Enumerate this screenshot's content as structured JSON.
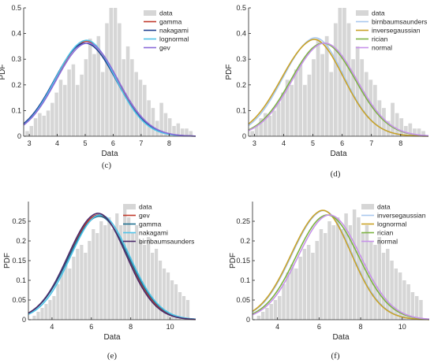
{
  "colors": {
    "bar_fill": "#d6d6d6",
    "axis": "#262626",
    "text": "#262626"
  },
  "panels": [
    {
      "id": "c",
      "caption": "(c)"
    },
    {
      "id": "d",
      "caption": "(d)"
    },
    {
      "id": "e",
      "caption": "(e)"
    },
    {
      "id": "f",
      "caption": "(f)"
    }
  ],
  "chart_data": [
    {
      "type": "bar",
      "panel": "(c)",
      "xlabel": "Data",
      "ylabel": "PDF",
      "xlim": [
        2.8,
        8.95
      ],
      "ylim": [
        0,
        0.5
      ],
      "xticks": [
        3,
        4,
        5,
        6,
        7,
        8
      ],
      "yticks": [
        0,
        0.1,
        0.2,
        0.3,
        0.4,
        0.5
      ],
      "ytick_labels": [
        "0",
        "0.1",
        "0.2",
        "0.3",
        "0.4",
        "0.5"
      ],
      "grid": false,
      "legend_position": "top-right",
      "hist_start": 2.85,
      "bin_width": 0.15,
      "values": [
        0.02,
        0.04,
        0.07,
        0.09,
        0.08,
        0.1,
        0.13,
        0.17,
        0.22,
        0.2,
        0.26,
        0.28,
        0.2,
        0.24,
        0.3,
        0.38,
        0.32,
        0.39,
        0.25,
        0.44,
        0.5,
        0.5,
        0.44,
        0.3,
        0.35,
        0.3,
        0.25,
        0.22,
        0.2,
        0.14,
        0.11,
        0.06,
        0.13,
        0.09,
        0.07,
        0.04,
        0.05,
        0.03,
        0.03,
        0.02
      ],
      "legend": [
        "data",
        "gamma",
        "nakagami",
        "lognormal",
        "gev"
      ],
      "series": [
        {
          "name": "gamma",
          "color": "#c0392b",
          "mu": 5.0,
          "sigma": 1.08,
          "skew": 0.15
        },
        {
          "name": "nakagami",
          "color": "#1f3f8f",
          "mu": 5.0,
          "sigma": 1.1,
          "skew": 0.0
        },
        {
          "name": "lognormal",
          "color": "#4fc3e8",
          "mu": 4.98,
          "sigma": 1.07,
          "skew": 0.2
        },
        {
          "name": "gev",
          "color": "#8a6ad8",
          "mu": 5.05,
          "sigma": 1.1,
          "skew": 0.1
        }
      ]
    },
    {
      "type": "bar",
      "panel": "(d)",
      "xlabel": "Data",
      "ylabel": "PDF",
      "xlim": [
        2.8,
        8.95
      ],
      "ylim": [
        0,
        0.5
      ],
      "xticks": [
        3,
        4,
        5,
        6,
        7,
        8
      ],
      "yticks": [
        0,
        0.1,
        0.2,
        0.3,
        0.4,
        0.5
      ],
      "ytick_labels": [
        "0",
        "0.1",
        "0.2",
        "0.3",
        "0.4",
        "0.5"
      ],
      "grid": false,
      "legend_position": "top-right",
      "hist_start": 2.85,
      "bin_width": 0.15,
      "values": [
        0.02,
        0.04,
        0.07,
        0.09,
        0.08,
        0.1,
        0.13,
        0.17,
        0.22,
        0.2,
        0.26,
        0.28,
        0.2,
        0.24,
        0.3,
        0.38,
        0.32,
        0.39,
        0.25,
        0.44,
        0.5,
        0.5,
        0.44,
        0.3,
        0.35,
        0.3,
        0.25,
        0.22,
        0.2,
        0.14,
        0.11,
        0.06,
        0.13,
        0.09,
        0.07,
        0.04,
        0.05,
        0.03,
        0.03,
        0.02
      ],
      "legend": [
        "data",
        "birnbaumsaunders",
        "inversegaussian",
        "rician",
        "normal"
      ],
      "series": [
        {
          "name": "birnbaumsaunders",
          "color": "#a9c8ee",
          "mu": 4.95,
          "sigma": 1.05,
          "skew": 0.45
        },
        {
          "name": "inversegaussian",
          "color": "#c9a227",
          "mu": 4.9,
          "sigma": 1.07,
          "skew": 0.5
        },
        {
          "name": "rician",
          "color": "#7cb342",
          "mu": 5.35,
          "sigma": 1.1,
          "skew": 0.0
        },
        {
          "name": "normal",
          "color": "#c792ea",
          "mu": 5.4,
          "sigma": 1.1,
          "skew": 0.0
        }
      ]
    },
    {
      "type": "bar",
      "panel": "(e)",
      "xlabel": "Data",
      "ylabel": "PDF",
      "xlim": [
        2.8,
        11.3
      ],
      "ylim": [
        0,
        0.3
      ],
      "xticks": [
        4,
        6,
        8,
        10
      ],
      "yticks": [
        0,
        0.05,
        0.1,
        0.15,
        0.2,
        0.25
      ],
      "ytick_labels": [
        "0",
        "0.05",
        "0.1",
        "0.15",
        "0.2",
        "0.25"
      ],
      "grid": false,
      "legend_position": "top-right",
      "hist_start": 3.0,
      "bin_width": 0.2,
      "values": [
        0.01,
        0.02,
        0.03,
        0.04,
        0.05,
        0.06,
        0.09,
        0.12,
        0.14,
        0.13,
        0.16,
        0.18,
        0.19,
        0.17,
        0.2,
        0.23,
        0.22,
        0.25,
        0.24,
        0.26,
        0.23,
        0.27,
        0.24,
        0.28,
        0.26,
        0.22,
        0.24,
        0.2,
        0.19,
        0.21,
        0.17,
        0.18,
        0.15,
        0.13,
        0.12,
        0.1,
        0.09,
        0.07,
        0.06,
        0.05
      ],
      "legend": [
        "data",
        "gev",
        "gamma",
        "nakagami",
        "birnbaumsaunders"
      ],
      "series": [
        {
          "name": "gev",
          "color": "#c0392b",
          "mu": 6.3,
          "sigma": 1.5,
          "skew": 0.15
        },
        {
          "name": "gamma",
          "color": "#1f6f8f",
          "mu": 6.35,
          "sigma": 1.52,
          "skew": 0.1
        },
        {
          "name": "nakagami",
          "color": "#4fc3e8",
          "mu": 6.45,
          "sigma": 1.5,
          "skew": 0.0
        },
        {
          "name": "birnbaumsaunders",
          "color": "#4a2a6a",
          "mu": 6.25,
          "sigma": 1.48,
          "skew": 0.2
        }
      ]
    },
    {
      "type": "bar",
      "panel": "(f)",
      "xlabel": "Data",
      "ylabel": "PDF",
      "xlim": [
        2.8,
        11.3
      ],
      "ylim": [
        0,
        0.3
      ],
      "xticks": [
        4,
        6,
        8,
        10
      ],
      "yticks": [
        0,
        0.05,
        0.1,
        0.15,
        0.2,
        0.25
      ],
      "ytick_labels": [
        "0",
        "0.05",
        "0.1",
        "0.15",
        "0.2",
        "0.25"
      ],
      "grid": false,
      "legend_position": "top-right",
      "hist_start": 3.0,
      "bin_width": 0.2,
      "values": [
        0.01,
        0.02,
        0.03,
        0.04,
        0.05,
        0.06,
        0.09,
        0.12,
        0.14,
        0.13,
        0.16,
        0.18,
        0.19,
        0.17,
        0.2,
        0.23,
        0.22,
        0.25,
        0.24,
        0.26,
        0.23,
        0.27,
        0.24,
        0.28,
        0.26,
        0.22,
        0.24,
        0.2,
        0.19,
        0.21,
        0.17,
        0.18,
        0.15,
        0.13,
        0.12,
        0.1,
        0.09,
        0.07,
        0.06,
        0.05
      ],
      "legend": [
        "data",
        "inversegaussian",
        "lognormal",
        "rician",
        "normal"
      ],
      "series": [
        {
          "name": "inversegaussian",
          "color": "#a9c8ee",
          "mu": 6.05,
          "sigma": 1.45,
          "skew": 0.4
        },
        {
          "name": "lognormal",
          "color": "#c9a227",
          "mu": 6.0,
          "sigma": 1.45,
          "skew": 0.45
        },
        {
          "name": "rician",
          "color": "#7cb342",
          "mu": 6.4,
          "sigma": 1.5,
          "skew": 0.0
        },
        {
          "name": "normal",
          "color": "#c792ea",
          "mu": 6.5,
          "sigma": 1.5,
          "skew": 0.0
        }
      ]
    }
  ]
}
